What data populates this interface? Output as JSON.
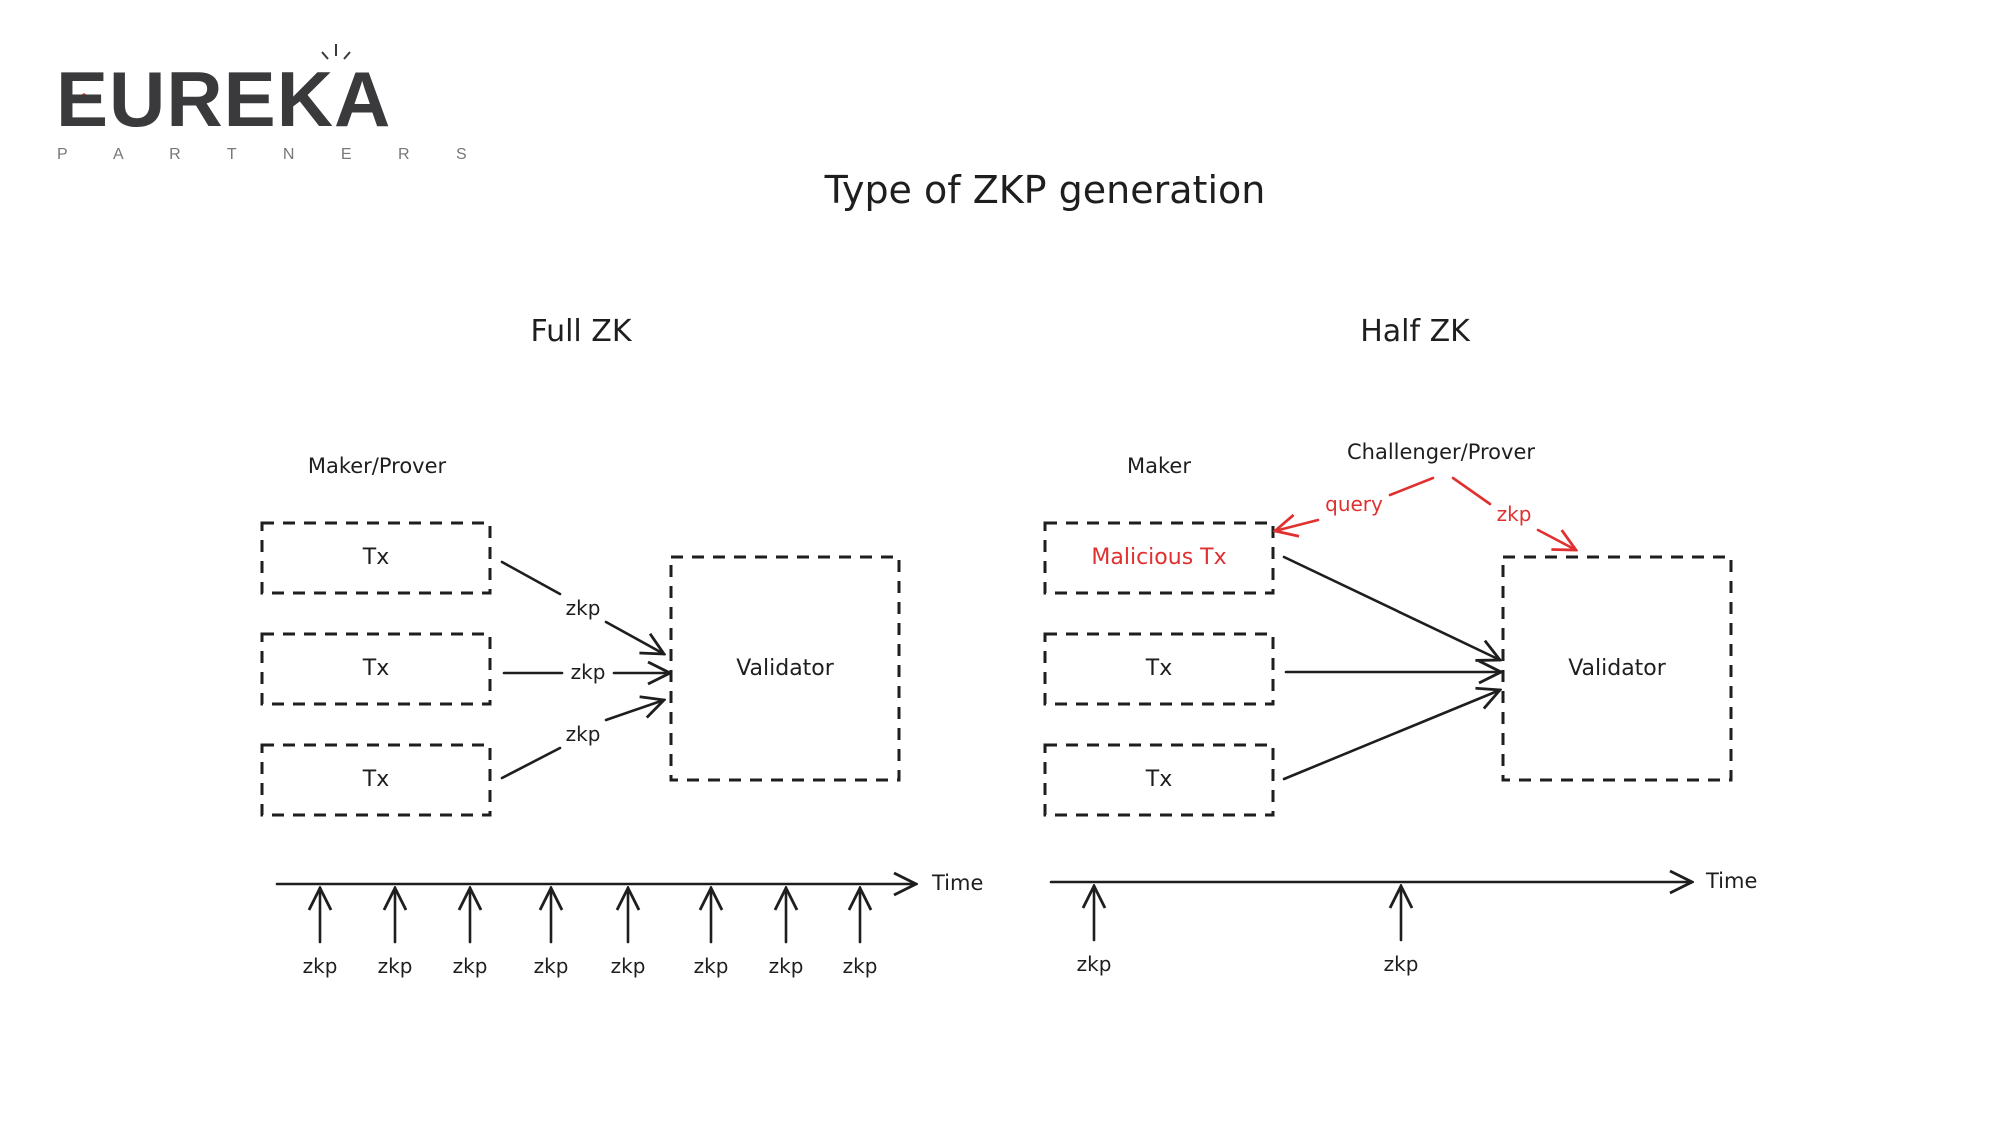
{
  "logo": {
    "name": "EUREKA",
    "subtitle": "P A R T N E R S",
    "colors": {
      "text": "#3a3a3c",
      "accent": "#e0452b"
    }
  },
  "title": "Type of ZKP generation",
  "full_zk": {
    "heading": "Full ZK",
    "actor_label": "Maker/Prover",
    "tx_boxes": [
      "Tx",
      "Tx",
      "Tx"
    ],
    "arrow_labels": [
      "zkp",
      "zkp",
      "zkp"
    ],
    "validator": "Validator",
    "time_label": "Time",
    "timeline_labels": [
      "zkp",
      "zkp",
      "zkp",
      "zkp",
      "zkp",
      "zkp",
      "zkp",
      "zkp"
    ]
  },
  "half_zk": {
    "heading": "Half ZK",
    "actor_label": "Maker",
    "challenger_label": "Challenger/Prover",
    "query_label": "query",
    "zkp_label": "zkp",
    "tx_boxes": [
      "Malicious Tx",
      "Tx",
      "Tx"
    ],
    "validator": "Validator",
    "time_label": "Time",
    "timeline_labels": [
      "zkp",
      "zkp"
    ]
  },
  "colors": {
    "ink": "#1e1e1e",
    "highlight": "#e03131"
  }
}
